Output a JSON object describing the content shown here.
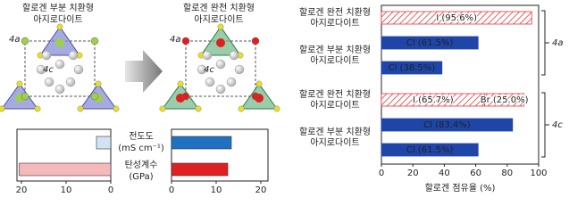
{
  "structures": [
    {
      "title": [
        "할로겐 부분 치환형",
        "아지로다이트"
      ],
      "site_labels": [
        "4a",
        "4c"
      ]
    },
    {
      "title": [
        "할로겐 완전 치환형",
        "아지로다이트"
      ],
      "site_labels": [
        "4a",
        "4c"
      ]
    }
  ],
  "chart_data": [
    {
      "type": "mirror-bar",
      "categories": [
        [
          "전도도",
          "(mS cm⁻¹)"
        ],
        [
          "탄성계수",
          "(GPa)"
        ]
      ],
      "category_colors": [
        "#1f6fc0",
        "#e02020"
      ],
      "series": [
        {
          "values": [
            3.2,
            20.5
          ],
          "colors": [
            "#d3e3f3",
            "#f5b9b9"
          ],
          "xlim": [
            0,
            21
          ],
          "xticks": [
            0,
            10,
            20
          ],
          "reversed": true
        },
        {
          "values": [
            13.4,
            12.6
          ],
          "colors": [
            "#2171c2",
            "#e02020"
          ],
          "xlim": [
            0,
            21.6
          ],
          "xticks": [
            0,
            10,
            20
          ],
          "reversed": false
        }
      ]
    },
    {
      "type": "hbar-grouped",
      "xlabel": "할로겐 점유율 (%)",
      "xlim": [
        0,
        100
      ],
      "xticks": [
        0,
        20,
        40,
        60,
        80,
        100
      ],
      "sites": [
        {
          "label": "4a",
          "groups": [
            {
              "label": [
                "할로겐 완전 치환형",
                "아지로다이트"
              ],
              "bars": [
                [
                  {
                    "value": 95.6,
                    "value_label": "I (95.6%)",
                    "color": "#e03a3a",
                    "hatch": true
                  }
                ]
              ]
            },
            {
              "label": [
                "할로겐 부분 치환형",
                "아지로다이트"
              ],
              "bars": [
                [
                  {
                    "value": 61.5,
                    "value_label": "Cl (61.5%)",
                    "color": "#1f45a8",
                    "hatch": false
                  }
                ],
                [
                  {
                    "value": 38.5,
                    "value_label": "Cl (38.5%)",
                    "color": "#1f45a8",
                    "hatch": false
                  }
                ]
              ]
            }
          ]
        },
        {
          "label": "4c",
          "groups": [
            {
              "label": [
                "할로겐 완전 치환형",
                "아지로다이트"
              ],
              "bars": [
                [
                  {
                    "value": 65.7,
                    "value_label": "I (65.7%)",
                    "color": "#e03a3a",
                    "hatch": true
                  },
                  {
                    "value": 25.0,
                    "value_label": "Br (25.0%)",
                    "color": "#e03a3a",
                    "hatch": true
                  }
                ]
              ]
            },
            {
              "label": [
                "할로겐 부분 치환형",
                "아지로다이트"
              ],
              "bars": [
                [
                  {
                    "value": 83.4,
                    "value_label": "Cl (83.4%)",
                    "color": "#1f45a8",
                    "hatch": false
                  }
                ],
                [
                  {
                    "value": 61.5,
                    "value_label": "Cl (61.5%)",
                    "color": "#1f45a8",
                    "hatch": false
                  }
                ]
              ]
            }
          ]
        }
      ]
    }
  ]
}
